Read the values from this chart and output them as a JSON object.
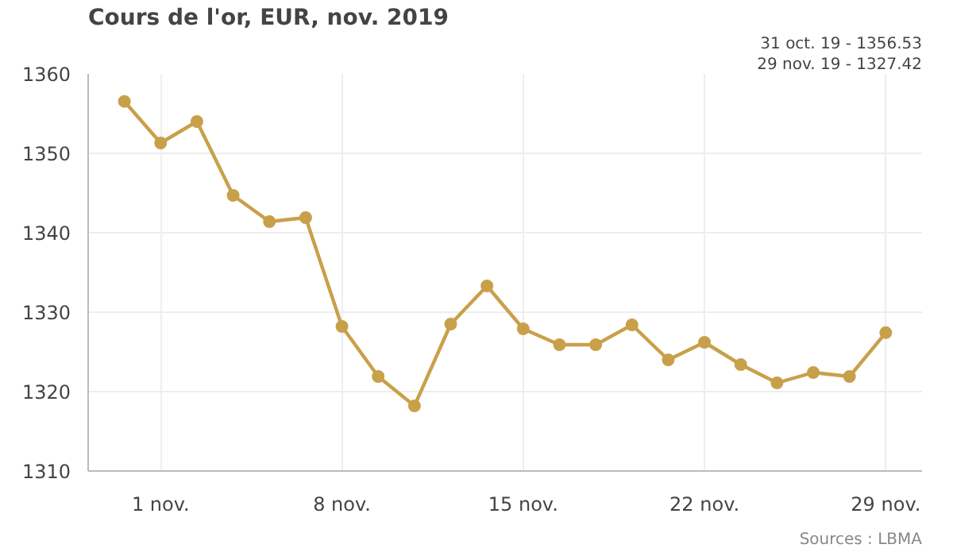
{
  "chart_data": {
    "type": "line",
    "title": "Cours de l'or, EUR, nov. 2019",
    "categories": [
      null,
      "1 nov.",
      null,
      null,
      null,
      null,
      "8 nov.",
      null,
      null,
      null,
      null,
      "15 nov.",
      null,
      null,
      null,
      null,
      "22 nov.",
      null,
      null,
      null,
      null,
      "29 nov."
    ],
    "series": [
      {
        "color": "#c9a04a",
        "values": [
          1356.53,
          1351.3,
          1354.0,
          1344.7,
          1341.4,
          1341.9,
          1328.2,
          1321.9,
          1318.2,
          1328.5,
          1333.3,
          1327.9,
          1325.9,
          1325.9,
          1328.4,
          1324.0,
          1326.2,
          1323.4,
          1321.1,
          1322.4,
          1321.9,
          1327.42
        ]
      }
    ],
    "ylim": [
      1310,
      1360
    ],
    "yticks": [
      1310,
      1320,
      1330,
      1340,
      1350,
      1360
    ],
    "grid": true,
    "marker": "circle",
    "line_style": "solid",
    "annotations": [
      "31 oct. 19 - 1356.53",
      "29 nov. 19 - 1327.42",
      "Sources : LBMA"
    ]
  }
}
